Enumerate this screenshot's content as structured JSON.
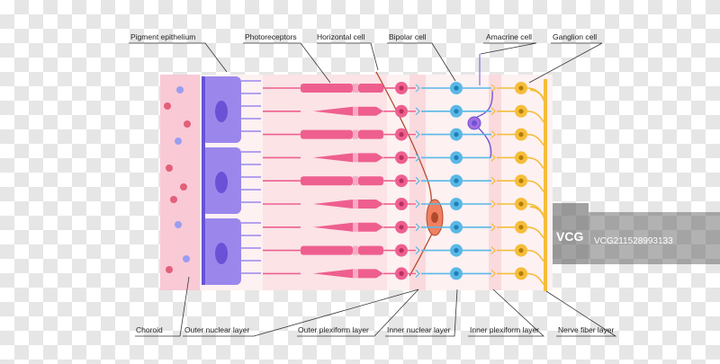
{
  "labels": {
    "pigment_epithelium": "Pigment epithelium",
    "photoreceptors": "Photoreceptors",
    "horizontal_cell": "Horizontal cell",
    "bipolar_cell": "Bipolar cell",
    "amacrine_cell": "Amacrine cell",
    "ganglion_cell": "Ganglion cell",
    "choroid": "Choroid",
    "outer_nuclear_layer": "Outer nuclear layer",
    "outer_plexiform_layer": "Outer plexiform layer",
    "inner_nuclear_layer": "Inner nuclear layer",
    "inner_plexiform_layer": "Inner plexiform layer",
    "nerve_fiber_layer": "Nerve fiber layer"
  },
  "watermark": {
    "logo_text": "VCG",
    "id_text": "VCG211528993133"
  },
  "colors": {
    "choroid": "#f9c9d6",
    "epithelium": "#9b87ec",
    "epithelium_nucleus": "#6a52d6",
    "photoreceptor": "#ee5f8f",
    "photoreceptor_pale": "#f7aac3",
    "bipolar": "#5ab8e6",
    "amacrine": "#a56de2",
    "horizontal": "#f08060",
    "ganglion": "#f5bd3a",
    "layer_band": "#fbe8ea"
  },
  "structure": {
    "rows": 9,
    "rod_rows": [
      1,
      3,
      5,
      8
    ],
    "cone_rows": [
      2,
      4,
      6,
      7
    ]
  }
}
